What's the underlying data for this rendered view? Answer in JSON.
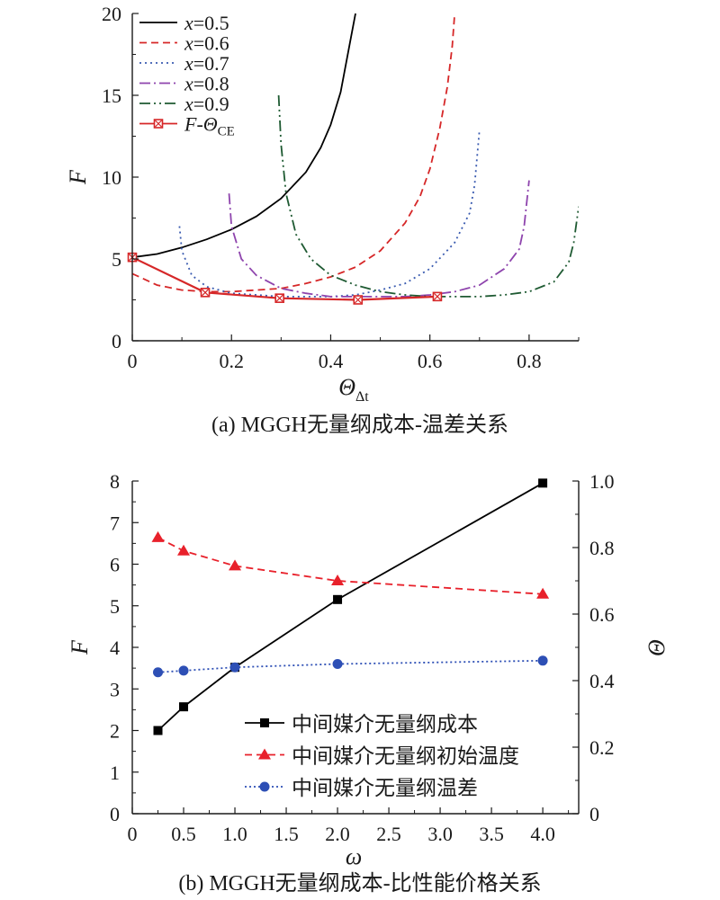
{
  "captions": {
    "a": "(a) MGGH无量纲成本-温差关系",
    "b": "(b) MGGH无量纲成本-比性能价格关系"
  },
  "chart_data": [
    {
      "type": "line",
      "panel": "a",
      "xlabel": "Θ_Δt",
      "ylabel": "F",
      "xlim": [
        0,
        0.9
      ],
      "ylim": [
        0,
        20
      ],
      "xticks": [
        "0",
        "0.2",
        "0.4",
        "0.6",
        "0.8"
      ],
      "yticks": [
        "0",
        "5",
        "10",
        "15",
        "20"
      ],
      "legend_position": "top-left",
      "series": [
        {
          "name": "x=0.5",
          "style": "solid",
          "color": "#000000",
          "x": [
            0,
            0.05,
            0.1,
            0.15,
            0.2,
            0.25,
            0.3,
            0.35,
            0.38,
            0.4,
            0.42,
            0.43,
            0.44,
            0.45
          ],
          "y": [
            5.1,
            5.3,
            5.7,
            6.2,
            6.8,
            7.6,
            8.7,
            10.3,
            11.8,
            13.2,
            15.2,
            16.8,
            18.4,
            20.0
          ]
        },
        {
          "name": "x=0.6",
          "style": "dashed",
          "color": "#d62728",
          "x": [
            0,
            0.05,
            0.1,
            0.15,
            0.2,
            0.25,
            0.3,
            0.35,
            0.4,
            0.45,
            0.5,
            0.55,
            0.58,
            0.6,
            0.62,
            0.635,
            0.645,
            0.65
          ],
          "y": [
            4.1,
            3.4,
            3.1,
            3.0,
            3.0,
            3.1,
            3.2,
            3.5,
            3.9,
            4.5,
            5.5,
            7.2,
            8.8,
            10.5,
            13.0,
            15.5,
            18.0,
            20.0
          ]
        },
        {
          "name": "x=0.7",
          "style": "dotted",
          "color": "#3a5bb0",
          "x": [
            0.095,
            0.1,
            0.12,
            0.15,
            0.2,
            0.25,
            0.3,
            0.35,
            0.4,
            0.45,
            0.5,
            0.55,
            0.6,
            0.65,
            0.68,
            0.69,
            0.7
          ],
          "y": [
            7.0,
            5.5,
            4.0,
            3.3,
            2.9,
            2.8,
            2.7,
            2.7,
            2.7,
            2.8,
            3.1,
            3.5,
            4.4,
            6.0,
            7.8,
            9.5,
            12.9
          ]
        },
        {
          "name": "x=0.8",
          "style": "dashdot",
          "color": "#8e44ad",
          "x": [
            0.195,
            0.2,
            0.22,
            0.25,
            0.3,
            0.35,
            0.4,
            0.45,
            0.5,
            0.55,
            0.6,
            0.65,
            0.7,
            0.75,
            0.78,
            0.79,
            0.8
          ],
          "y": [
            9.0,
            7.0,
            5.0,
            4.0,
            3.2,
            2.9,
            2.7,
            2.7,
            2.7,
            2.7,
            2.8,
            3.0,
            3.4,
            4.4,
            5.6,
            7.0,
            9.8
          ]
        },
        {
          "name": "x=0.9",
          "style": "dashdotdot",
          "color": "#1e5a32",
          "x": [
            0.295,
            0.3,
            0.31,
            0.33,
            0.36,
            0.4,
            0.45,
            0.5,
            0.55,
            0.6,
            0.65,
            0.7,
            0.75,
            0.8,
            0.85,
            0.88,
            0.89,
            0.9
          ],
          "y": [
            15.0,
            12.0,
            9.0,
            6.5,
            5.0,
            4.0,
            3.4,
            3.0,
            2.8,
            2.7,
            2.7,
            2.7,
            2.8,
            3.0,
            3.6,
            4.8,
            6.0,
            8.2
          ]
        },
        {
          "name": "F-Θ_CE",
          "style": "solid-marker",
          "color": "#d62728",
          "x": [
            0,
            0.147,
            0.297,
            0.455,
            0.615
          ],
          "y": [
            5.1,
            2.95,
            2.6,
            2.5,
            2.7
          ]
        }
      ]
    },
    {
      "type": "line",
      "panel": "b",
      "xlabel": "ω",
      "ylabel": "F",
      "y2label": "Θ",
      "xlim": [
        0,
        4.35
      ],
      "ylim": [
        0,
        8
      ],
      "y2lim": [
        0,
        1.0
      ],
      "xticks": [
        "0",
        "0.5",
        "1.0",
        "1.5",
        "2.0",
        "2.5",
        "3.0",
        "3.5",
        "4.0"
      ],
      "yticks": [
        "0",
        "1",
        "2",
        "3",
        "4",
        "5",
        "6",
        "7",
        "8"
      ],
      "y2ticks": [
        "0",
        "0.2",
        "0.4",
        "0.6",
        "0.8",
        "1.0"
      ],
      "legend_position": "bottom-right",
      "series": [
        {
          "name": "中间媒介无量纲成本",
          "axis": "left",
          "style": "solid",
          "marker": "square",
          "color": "#000000",
          "x": [
            0.25,
            0.5,
            1.0,
            2.0,
            4.0
          ],
          "y": [
            2.0,
            2.57,
            3.52,
            5.15,
            7.95
          ]
        },
        {
          "name": "中间媒介无量纲初始温度",
          "axis": "right",
          "style": "dashed",
          "marker": "triangle",
          "color": "#e8212b",
          "x": [
            0.25,
            0.5,
            1.0,
            2.0,
            4.0
          ],
          "y": [
            0.83,
            0.79,
            0.745,
            0.7,
            0.66
          ]
        },
        {
          "name": "中间媒介无量纲温差",
          "axis": "right",
          "style": "dotted",
          "marker": "circle",
          "color": "#2d4fb5",
          "x": [
            0.25,
            0.5,
            1.0,
            2.0,
            4.0
          ],
          "y": [
            0.425,
            0.43,
            0.44,
            0.45,
            0.46
          ]
        }
      ]
    }
  ]
}
